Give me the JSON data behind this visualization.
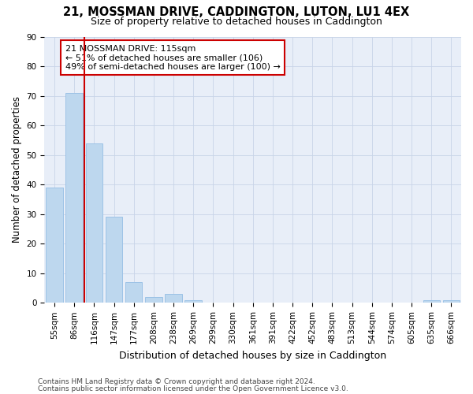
{
  "title1": "21, MOSSMAN DRIVE, CADDINGTON, LUTON, LU1 4EX",
  "title2": "Size of property relative to detached houses in Caddington",
  "xlabel": "Distribution of detached houses by size in Caddington",
  "ylabel": "Number of detached properties",
  "footnote1": "Contains HM Land Registry data © Crown copyright and database right 2024.",
  "footnote2": "Contains public sector information licensed under the Open Government Licence v3.0.",
  "categories": [
    "55sqm",
    "86sqm",
    "116sqm",
    "147sqm",
    "177sqm",
    "208sqm",
    "238sqm",
    "269sqm",
    "299sqm",
    "330sqm",
    "361sqm",
    "391sqm",
    "422sqm",
    "452sqm",
    "483sqm",
    "513sqm",
    "544sqm",
    "574sqm",
    "605sqm",
    "635sqm",
    "666sqm"
  ],
  "values": [
    39,
    71,
    54,
    29,
    7,
    2,
    3,
    1,
    0,
    0,
    0,
    0,
    0,
    0,
    0,
    0,
    0,
    0,
    0,
    1,
    1
  ],
  "bar_color": "#bdd7ee",
  "bar_edge_color": "#9dc3e6",
  "grid_color": "#c8d4e8",
  "background_color": "#e8eef8",
  "annotation_text": "21 MOSSMAN DRIVE: 115sqm\n← 51% of detached houses are smaller (106)\n49% of semi-detached houses are larger (100) →",
  "annotation_box_color": "#ffffff",
  "annotation_box_edge_color": "#cc0000",
  "vline_color": "#cc0000",
  "vline_x": 1.5,
  "ylim": [
    0,
    90
  ],
  "yticks": [
    0,
    10,
    20,
    30,
    40,
    50,
    60,
    70,
    80,
    90
  ],
  "title1_fontsize": 10.5,
  "title2_fontsize": 9,
  "ylabel_fontsize": 8.5,
  "xlabel_fontsize": 9,
  "tick_fontsize": 7.5,
  "annotation_fontsize": 8,
  "footnote_fontsize": 6.5
}
